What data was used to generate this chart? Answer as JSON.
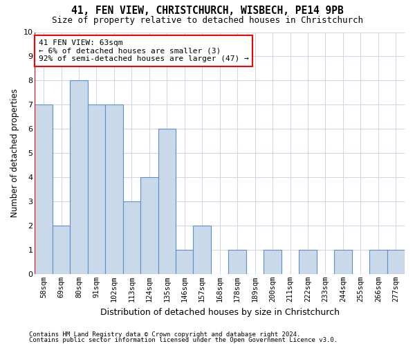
{
  "title": "41, FEN VIEW, CHRISTCHURCH, WISBECH, PE14 9PB",
  "subtitle": "Size of property relative to detached houses in Christchurch",
  "xlabel": "Distribution of detached houses by size in Christchurch",
  "ylabel": "Number of detached properties",
  "categories": [
    "58sqm",
    "69sqm",
    "80sqm",
    "91sqm",
    "102sqm",
    "113sqm",
    "124sqm",
    "135sqm",
    "146sqm",
    "157sqm",
    "168sqm",
    "178sqm",
    "189sqm",
    "200sqm",
    "211sqm",
    "222sqm",
    "233sqm",
    "244sqm",
    "255sqm",
    "266sqm",
    "277sqm"
  ],
  "values": [
    7,
    2,
    8,
    7,
    7,
    3,
    4,
    6,
    1,
    2,
    0,
    1,
    0,
    1,
    0,
    1,
    0,
    1,
    0,
    1,
    1
  ],
  "bar_color": "#c9d9ea",
  "bar_edge_color": "#5b8fc9",
  "annotation_box_text": "41 FEN VIEW: 63sqm\n← 6% of detached houses are smaller (3)\n92% of semi-detached houses are larger (47) →",
  "annotation_box_color": "white",
  "annotation_box_edge_color": "red",
  "marker_line_color": "red",
  "ylim": [
    0,
    10
  ],
  "yticks": [
    0,
    1,
    2,
    3,
    4,
    5,
    6,
    7,
    8,
    9,
    10
  ],
  "footer_line1": "Contains HM Land Registry data © Crown copyright and database right 2024.",
  "footer_line2": "Contains public sector information licensed under the Open Government Licence v3.0.",
  "grid_color": "#c8cfe0"
}
